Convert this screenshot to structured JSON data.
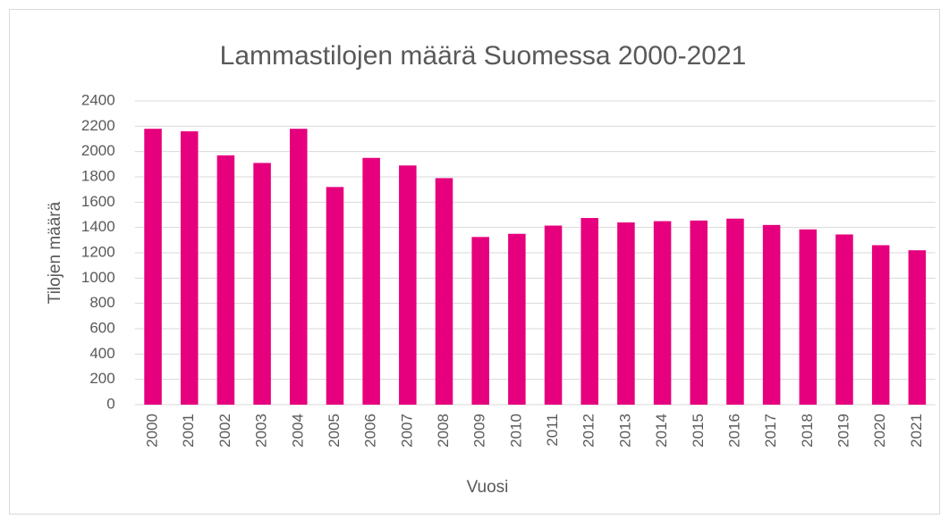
{
  "chart_data": {
    "type": "bar",
    "title": "Lammastilojen määrä Suomessa 2000-2021",
    "x_label": "Vuosi",
    "y_label": "Tilojen määrä",
    "categories": [
      "2000",
      "2001",
      "2002",
      "2003",
      "2004",
      "2005",
      "2006",
      "2007",
      "2008",
      "2009",
      "2010",
      "2011",
      "2012",
      "2013",
      "2014",
      "2015",
      "2016",
      "2017",
      "2018",
      "2019",
      "2020",
      "2021"
    ],
    "values": [
      2180,
      2160,
      1970,
      1910,
      2180,
      1720,
      1950,
      1890,
      1790,
      1325,
      1350,
      1415,
      1475,
      1440,
      1450,
      1455,
      1470,
      1420,
      1385,
      1345,
      1260,
      1220
    ],
    "color": "#e6007e",
    "ylim": [
      0,
      2400
    ],
    "yticks": [
      0,
      200,
      400,
      600,
      800,
      1000,
      1200,
      1400,
      1600,
      1800,
      2000,
      2200,
      2400
    ],
    "grid": true
  }
}
